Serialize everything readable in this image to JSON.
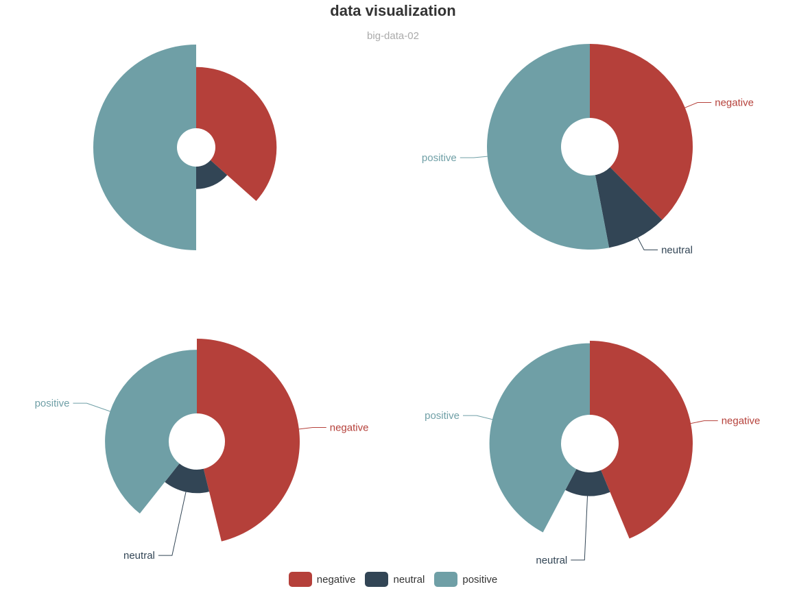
{
  "header": {
    "title": "data visualization",
    "subtitle": "big-data-02"
  },
  "colors": {
    "negative": "#b5403a",
    "neutral": "#324555",
    "positive": "#6f9fa6"
  },
  "legend": [
    {
      "name": "negative",
      "color": "#b5403a"
    },
    {
      "name": "neutral",
      "color": "#324555"
    },
    {
      "name": "positive",
      "color": "#6f9fa6"
    }
  ],
  "chart_data": [
    {
      "type": "pie",
      "variant": "rose-radius",
      "position": "top-left",
      "show_labels": false,
      "slices": [
        {
          "name": "negative",
          "value": 3660
        },
        {
          "name": "neutral",
          "value": 1340
        },
        {
          "name": "positive",
          "value": 5000
        }
      ]
    },
    {
      "type": "pie",
      "variant": "pie",
      "position": "top-right",
      "show_labels": true,
      "slices": [
        {
          "name": "negative",
          "value": 37.6
        },
        {
          "name": "neutral",
          "value": 9.4
        },
        {
          "name": "positive",
          "value": 53.0
        }
      ]
    },
    {
      "type": "pie",
      "variant": "rose-radius",
      "position": "bottom-left",
      "show_labels": true,
      "slices": [
        {
          "name": "negative",
          "value": 4200
        },
        {
          "name": "neutral",
          "value": 1320
        },
        {
          "name": "positive",
          "value": 3580
        }
      ]
    },
    {
      "type": "pie",
      "variant": "rose-radius",
      "position": "bottom-right",
      "show_labels": true,
      "slices": [
        {
          "name": "negative",
          "value": 3620
        },
        {
          "name": "neutral",
          "value": 1160
        },
        {
          "name": "positive",
          "value": 3500
        }
      ]
    }
  ]
}
